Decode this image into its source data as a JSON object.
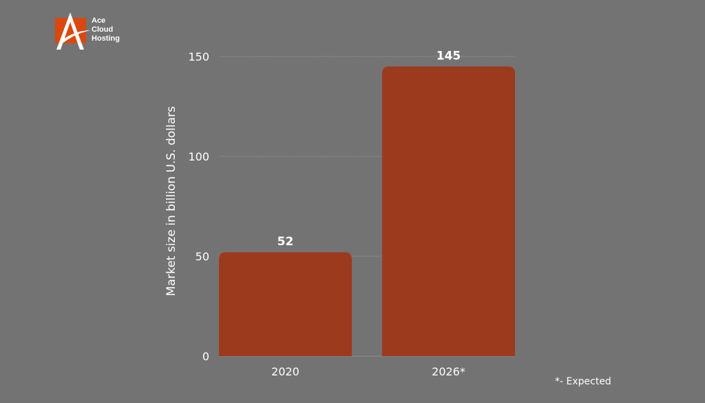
{
  "logo": {
    "line1": "Ace",
    "line2": "Cloud",
    "line3": "Hosting",
    "brand_color": "#d9480f"
  },
  "footnote": "*- Expected",
  "chart_data": {
    "type": "bar",
    "categories": [
      "2020",
      "2026*"
    ],
    "values": [
      52,
      145
    ],
    "data_labels": [
      "52",
      "145"
    ],
    "title": "",
    "xlabel": "",
    "ylabel": "Market size in billion U.S. dollars",
    "ylim": [
      0,
      150
    ],
    "yticks": [
      0,
      50,
      100,
      150
    ],
    "grid": true,
    "bar_color": "#9c3a1d",
    "background": "#737373"
  }
}
